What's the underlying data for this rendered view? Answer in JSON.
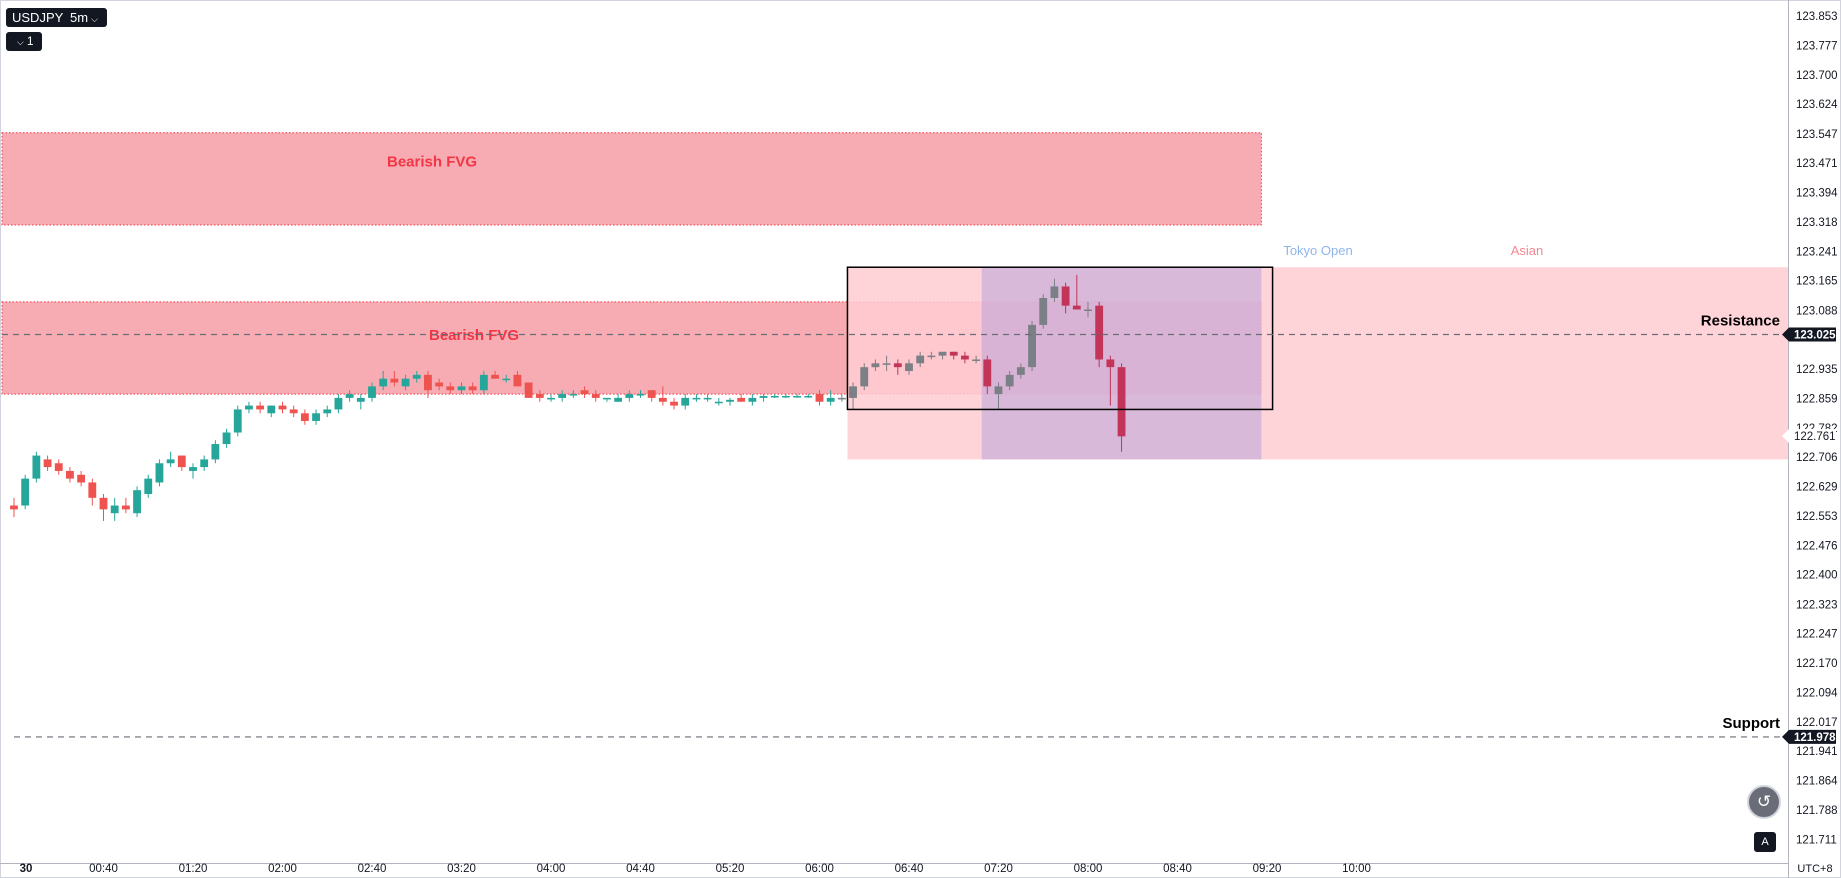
{
  "toolbar": {
    "symbol": "USDJPY",
    "interval": "5m",
    "layers_count": "1"
  },
  "icons": {
    "chevron": "chevron-down-icon",
    "scroll_to_realtime": "scroll-back-icon",
    "auto_scale": "auto-scale-icon"
  },
  "colors": {
    "up": "#26a69a",
    "down": "#ef5350",
    "up_dim": "#7b7f86",
    "down_dim": "#c23458",
    "fvg_fill": "#f7a7ae",
    "fvg_border": "#f23645",
    "fvg_label": "#f23645",
    "asian_fill": "#ffcdd2",
    "tokyo_fill": "#b39ddb",
    "tokyo_label": "#8fb4ec",
    "asian_label": "#f48893",
    "axis_text": "#131722",
    "label_bg": "#131722"
  },
  "chart_data": {
    "type": "candlestick",
    "symbol": "USDJPY",
    "interval": "5m",
    "ylim": [
      121.65,
      123.89
    ],
    "xlim_bars": [
      -0.5,
      158
    ],
    "price_axis_ticks": [
      "123.853",
      "123.777",
      "123.700",
      "123.624",
      "123.547",
      "123.471",
      "123.394",
      "123.318",
      "123.241",
      "123.165",
      "123.088",
      "122.935",
      "122.859",
      "122.782",
      "122.706",
      "122.629",
      "122.553",
      "122.476",
      "122.400",
      "122.323",
      "122.247",
      "122.170",
      "122.094",
      "122.017",
      "121.941",
      "121.864",
      "121.788",
      "121.711"
    ],
    "time_axis_ticks": [
      {
        "label": "30",
        "bar": 0
      },
      {
        "label": "00:40",
        "bar": 8
      },
      {
        "label": "01:20",
        "bar": 16
      },
      {
        "label": "02:00",
        "bar": 24
      },
      {
        "label": "02:40",
        "bar": 32
      },
      {
        "label": "03:20",
        "bar": 40
      },
      {
        "label": "04:00",
        "bar": 48
      },
      {
        "label": "04:40",
        "bar": 56
      },
      {
        "label": "05:20",
        "bar": 64
      },
      {
        "label": "06:00",
        "bar": 72
      },
      {
        "label": "06:40",
        "bar": 80
      },
      {
        "label": "07:20",
        "bar": 88
      },
      {
        "label": "08:00",
        "bar": 96
      },
      {
        "label": "08:40",
        "bar": 104
      },
      {
        "label": "09:20",
        "bar": 112
      },
      {
        "label": "10:00",
        "bar": 120
      }
    ],
    "timezone": "UTC+8",
    "ohlc": [
      [
        122.58,
        122.6,
        122.55,
        122.57
      ],
      [
        122.58,
        122.66,
        122.57,
        122.65
      ],
      [
        122.65,
        122.72,
        122.64,
        122.71
      ],
      [
        122.7,
        122.71,
        122.67,
        122.68
      ],
      [
        122.69,
        122.7,
        122.66,
        122.67
      ],
      [
        122.67,
        122.68,
        122.64,
        122.65
      ],
      [
        122.66,
        122.67,
        122.63,
        122.64
      ],
      [
        122.64,
        122.65,
        122.58,
        122.6
      ],
      [
        122.6,
        122.61,
        122.54,
        122.57
      ],
      [
        122.56,
        122.6,
        122.54,
        122.58
      ],
      [
        122.58,
        122.6,
        122.56,
        122.57
      ],
      [
        122.56,
        122.63,
        122.55,
        122.62
      ],
      [
        122.61,
        122.66,
        122.6,
        122.65
      ],
      [
        122.64,
        122.7,
        122.63,
        122.69
      ],
      [
        122.69,
        122.72,
        122.68,
        122.7
      ],
      [
        122.71,
        122.71,
        122.67,
        122.68
      ],
      [
        122.67,
        122.69,
        122.65,
        122.68
      ],
      [
        122.68,
        122.71,
        122.67,
        122.7
      ],
      [
        122.7,
        122.75,
        122.69,
        122.74
      ],
      [
        122.74,
        122.78,
        122.73,
        122.77
      ],
      [
        122.77,
        122.84,
        122.76,
        122.83
      ],
      [
        122.83,
        122.85,
        122.82,
        122.84
      ],
      [
        122.84,
        122.85,
        122.82,
        122.83
      ],
      [
        122.82,
        122.84,
        122.81,
        122.84
      ],
      [
        122.84,
        122.85,
        122.82,
        122.83
      ],
      [
        122.83,
        122.84,
        122.81,
        122.82
      ],
      [
        122.82,
        122.83,
        122.79,
        122.8
      ],
      [
        122.8,
        122.83,
        122.79,
        122.82
      ],
      [
        122.82,
        122.84,
        122.81,
        122.83
      ],
      [
        122.83,
        122.87,
        122.82,
        122.86
      ],
      [
        122.86,
        122.88,
        122.85,
        122.87
      ],
      [
        122.85,
        122.87,
        122.83,
        122.86
      ],
      [
        122.86,
        122.9,
        122.85,
        122.89
      ],
      [
        122.89,
        122.93,
        122.88,
        122.91
      ],
      [
        122.91,
        122.93,
        122.89,
        122.9
      ],
      [
        122.89,
        122.92,
        122.88,
        122.91
      ],
      [
        122.91,
        122.93,
        122.9,
        122.92
      ],
      [
        122.92,
        122.93,
        122.86,
        122.88
      ],
      [
        122.9,
        122.91,
        122.88,
        122.89
      ],
      [
        122.89,
        122.9,
        122.87,
        122.88
      ],
      [
        122.88,
        122.9,
        122.87,
        122.89
      ],
      [
        122.89,
        122.9,
        122.87,
        122.88
      ],
      [
        122.88,
        122.93,
        122.87,
        122.92
      ],
      [
        122.92,
        122.93,
        122.91,
        122.91
      ],
      [
        122.91,
        122.92,
        122.9,
        122.91
      ],
      [
        122.92,
        122.93,
        122.89,
        122.89
      ],
      [
        122.9,
        122.9,
        122.86,
        122.86
      ],
      [
        122.87,
        122.88,
        122.85,
        122.86
      ],
      [
        122.86,
        122.87,
        122.85,
        122.86
      ],
      [
        122.86,
        122.88,
        122.85,
        122.87
      ],
      [
        122.87,
        122.88,
        122.86,
        122.87
      ],
      [
        122.88,
        122.89,
        122.86,
        122.87
      ],
      [
        122.87,
        122.88,
        122.85,
        122.86
      ],
      [
        122.86,
        122.86,
        122.85,
        122.86
      ],
      [
        122.85,
        122.87,
        122.85,
        122.86
      ],
      [
        122.86,
        122.88,
        122.85,
        122.87
      ],
      [
        122.87,
        122.88,
        122.86,
        122.87
      ],
      [
        122.88,
        122.88,
        122.85,
        122.86
      ],
      [
        122.86,
        122.89,
        122.84,
        122.85
      ],
      [
        122.85,
        122.86,
        122.83,
        122.84
      ],
      [
        122.84,
        122.87,
        122.83,
        122.86
      ],
      [
        122.86,
        122.87,
        122.85,
        122.86
      ],
      [
        122.86,
        122.87,
        122.85,
        122.86
      ],
      [
        122.85,
        122.86,
        122.84,
        122.85
      ],
      [
        122.85,
        122.86,
        122.84,
        122.855
      ],
      [
        122.86,
        122.87,
        122.85,
        122.85
      ],
      [
        122.85,
        122.87,
        122.84,
        122.86
      ],
      [
        122.86,
        122.87,
        122.85,
        122.865
      ],
      [
        122.865,
        122.87,
        122.86,
        122.865
      ],
      [
        122.865,
        122.87,
        122.86,
        122.865
      ],
      [
        122.865,
        122.87,
        122.86,
        122.865
      ],
      [
        122.865,
        122.87,
        122.86,
        122.865
      ],
      [
        122.87,
        122.88,
        122.84,
        122.85
      ],
      [
        122.85,
        122.88,
        122.84,
        122.86
      ],
      [
        122.86,
        122.87,
        122.85,
        122.86
      ],
      [
        122.86,
        122.9,
        122.83,
        122.89
      ],
      [
        122.89,
        122.95,
        122.88,
        122.94
      ],
      [
        122.94,
        122.96,
        122.93,
        122.95
      ],
      [
        122.95,
        122.97,
        122.93,
        122.95
      ],
      [
        122.95,
        122.96,
        122.92,
        122.94
      ],
      [
        122.93,
        122.96,
        122.92,
        122.95
      ],
      [
        122.95,
        122.98,
        122.94,
        122.97
      ],
      [
        122.97,
        122.98,
        122.96,
        122.97
      ],
      [
        122.97,
        122.98,
        122.96,
        122.98
      ],
      [
        122.98,
        122.98,
        122.96,
        122.97
      ],
      [
        122.97,
        122.98,
        122.95,
        122.96
      ],
      [
        122.96,
        122.97,
        122.95,
        122.96
      ],
      [
        122.96,
        122.97,
        122.87,
        122.89
      ],
      [
        122.87,
        122.9,
        122.83,
        122.89
      ],
      [
        122.89,
        122.93,
        122.88,
        122.92
      ],
      [
        122.92,
        122.95,
        122.91,
        122.94
      ],
      [
        122.94,
        123.06,
        122.93,
        123.05
      ],
      [
        123.05,
        123.13,
        123.04,
        123.12
      ],
      [
        123.12,
        123.17,
        123.11,
        123.15
      ],
      [
        123.15,
        123.16,
        123.08,
        123.1
      ],
      [
        123.1,
        123.18,
        123.09,
        123.09
      ],
      [
        123.09,
        123.11,
        123.07,
        123.09
      ],
      [
        123.1,
        123.11,
        122.94,
        122.96
      ],
      [
        122.96,
        122.97,
        122.84,
        122.94
      ],
      [
        122.94,
        122.95,
        122.72,
        122.76
      ]
    ]
  },
  "annotations": {
    "fvg_upper": {
      "label": "Bearish FVG",
      "top": 123.55,
      "bottom": 123.31,
      "end_bar": 111.5
    },
    "fvg_lower": {
      "label": "Bearish FVG",
      "top": 123.11,
      "bottom": 122.87,
      "end_bar": 111.5
    },
    "asian_session": {
      "label": "Asian",
      "top": 123.2,
      "bottom": 122.7,
      "start_bar": 74.5,
      "end_bar": 158
    },
    "tokyo_open": {
      "label": "Tokyo Open",
      "top": 123.2,
      "bottom": 122.7,
      "start_bar": 86.5,
      "end_bar": 111.5
    },
    "range_box": {
      "top": 123.2,
      "bottom": 122.83,
      "start_bar": 74.5,
      "end_bar": 112.5
    },
    "resistance": {
      "label": "Resistance",
      "price": 123.025,
      "price_label": "123.025"
    },
    "support": {
      "label": "Support",
      "price": 121.978,
      "price_label": "121.978"
    },
    "last_price": {
      "price": 122.761,
      "price_label": "122.761"
    }
  }
}
